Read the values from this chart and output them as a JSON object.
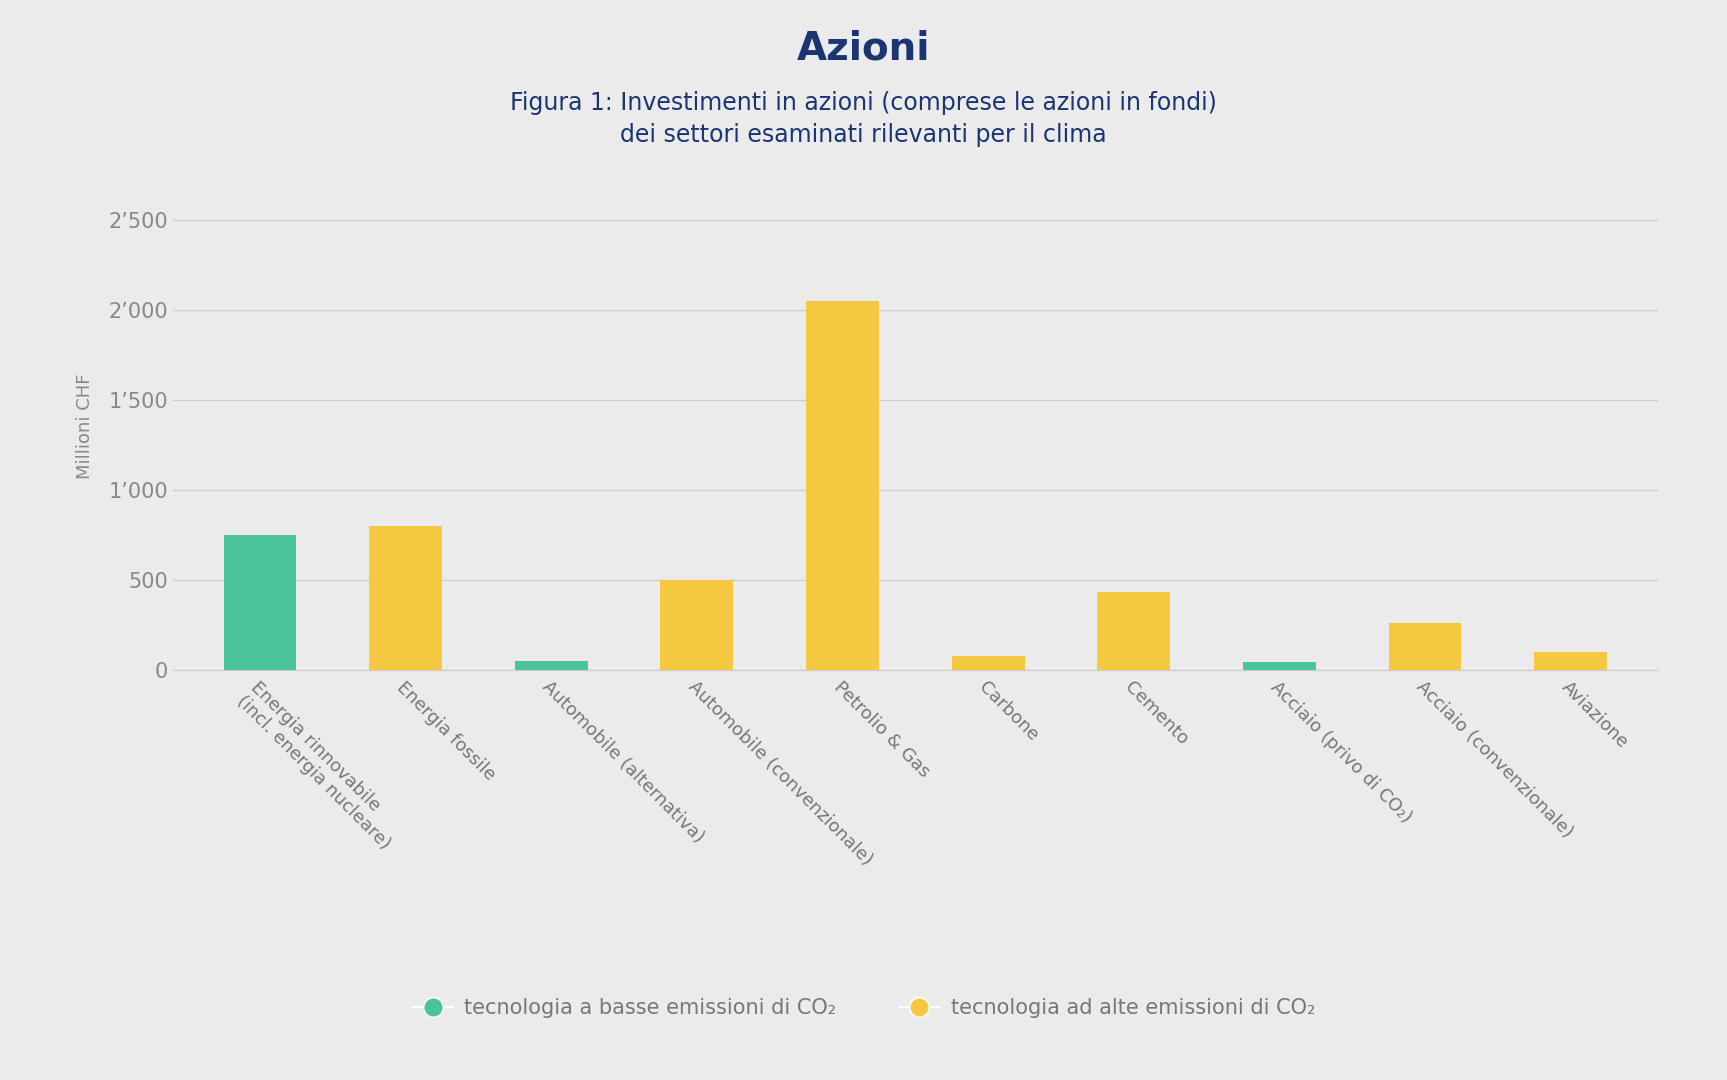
{
  "title": "Azioni",
  "subtitle_line1": "Figura 1: Investimenti in azioni (comprese le azioni in fondi)",
  "subtitle_line2": "dei settori esaminati rilevanti per il clima",
  "ylabel": "Millioni CHF",
  "categories": [
    "Energia rinnovabile\n(incl. energia nucleare)",
    "Energia fossile",
    "Automobile (alternativa)",
    "Automobile (convenzionale)",
    "Petrolio & Gas",
    "Carbone",
    "Cemento",
    "Acciaio (privo di CO₂)",
    "Acciaio (convenzionale)",
    "Aviazione"
  ],
  "values": [
    750,
    800,
    50,
    500,
    2050,
    75,
    430,
    40,
    260,
    100
  ],
  "colors": [
    "#4bc49a",
    "#f5c842",
    "#4bc49a",
    "#f5c842",
    "#f5c842",
    "#f5c842",
    "#f5c842",
    "#4bc49a",
    "#f5c842",
    "#f5c842"
  ],
  "legend_low_label": "tecnologia a basse emissioni di CO₂",
  "legend_high_label": "tecnologia ad alte emissioni di CO₂",
  "legend_low_color": "#4bc49a",
  "legend_high_color": "#f5c842",
  "yticks": [
    0,
    500,
    1000,
    1500,
    2000,
    2500
  ],
  "ytick_labels": [
    "0",
    "500",
    "1’000",
    "1’500",
    "2’000",
    "2’500"
  ],
  "ylim": [
    0,
    2700
  ],
  "background_color": "#ebebeb",
  "title_color": "#1a3572",
  "subtitle_color": "#1a3572",
  "ylabel_color": "#888888",
  "ytick_color": "#888888",
  "xtick_color": "#777777",
  "grid_color": "#cccccc",
  "bar_width": 0.5
}
